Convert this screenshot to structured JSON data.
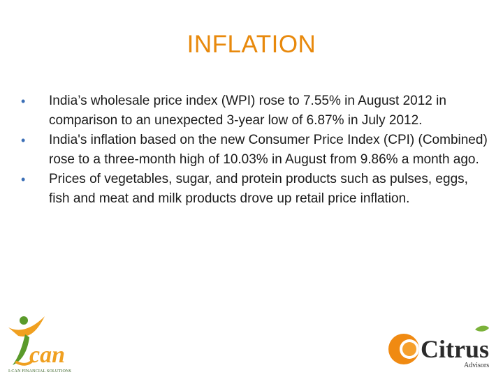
{
  "slide": {
    "title": "INFLATION",
    "bullets": [
      "India’s wholesale price index (WPI) rose to 7.55% in August 2012 in comparison to an unexpected 3-year low of 6.87% in July 2012.",
      "India's inflation based on the new Consumer Price Index (CPI) (Combined) rose to a three-month high of 10.03% in August from 9.86% a month ago.",
      "Prices of vegetables, sugar, and protein products such as pulses, eggs, fish and meat and milk products drove up retail price inflation."
    ],
    "bullet_glyph": "•"
  },
  "logos": {
    "ican": {
      "wordmark": "can",
      "caption": "I-CAN FINANCIAL SOLUTIONS",
      "colors": {
        "orange": "#f0a020",
        "green": "#5a9a2a"
      }
    },
    "citrus": {
      "wordmark": "Citrus",
      "tagline": "Advisors",
      "colors": {
        "orange": "#f08a12",
        "dark": "#2b2b2b",
        "leaf": "#7bb23a"
      }
    }
  },
  "colors": {
    "title": "#e8890c",
    "bullet": "#3b6fb6",
    "text": "#1a1a1a"
  }
}
